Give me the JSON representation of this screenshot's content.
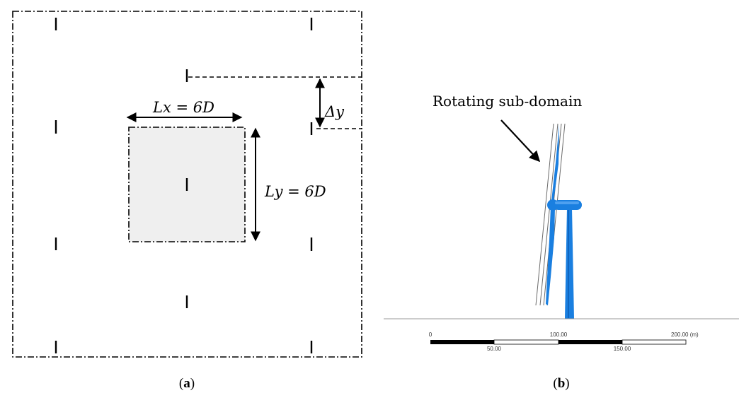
{
  "panel_a": {
    "caption_open": "(",
    "caption_letter": "a",
    "caption_close": ")",
    "lx_label": "Lx = 6D",
    "ly_label": "Ly = 6D",
    "dy_label": "Δy"
  },
  "panel_b": {
    "caption_open": "(",
    "caption_letter": "b",
    "caption_close": ")",
    "annotation": "Rotating sub-domain",
    "scale_top": [
      "0",
      "100.00",
      "200.00 (m)"
    ],
    "scale_bottom": [
      "50.00",
      "150.00"
    ],
    "turbine_color": "#1a7fe0"
  },
  "colors": {
    "subdomain_fill": "#efefef",
    "line": "#000000",
    "ground": "#9a9a9a"
  }
}
